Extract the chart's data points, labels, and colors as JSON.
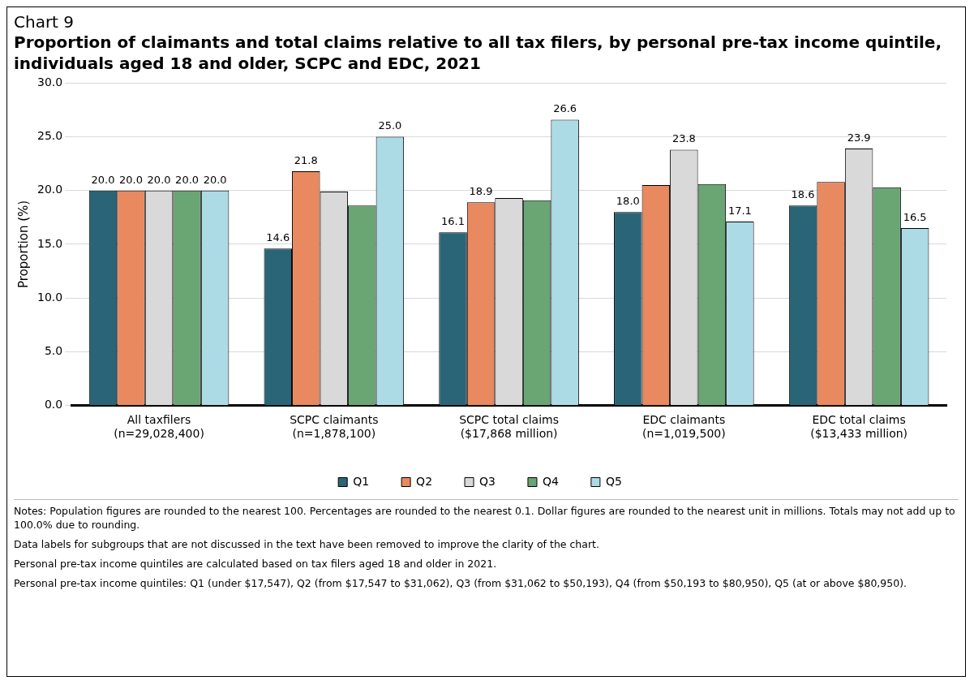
{
  "chart_data": {
    "type": "bar",
    "title": "Chart 9",
    "subtitle": "Proportion of claimants and total claims relative to all tax filers, by personal pre-tax income quintile, individuals aged 18 and older, SCPC and EDC, 2021",
    "ylabel": "Proportion (%)",
    "categories": [
      "All taxfilers\n(n=29,028,400)",
      "SCPC claimants\n(n=1,878,100)",
      "SCPC total claims\n($17,868 million)",
      "EDC claimants\n(n=1,019,500)",
      "EDC total claims\n($13,433 million)"
    ],
    "series": [
      {
        "name": "Q1",
        "color": "#2a6477",
        "values": [
          20.0,
          14.6,
          16.1,
          18.0,
          18.6
        ],
        "value_labels": [
          "20.0",
          "14.6",
          "16.1",
          "18.0",
          "18.6"
        ]
      },
      {
        "name": "Q2",
        "color": "#e8895f",
        "values": [
          20.0,
          21.8,
          18.9,
          20.5,
          20.8
        ],
        "value_labels": [
          "20.0",
          "21.8",
          "18.9",
          null,
          null
        ]
      },
      {
        "name": "Q3",
        "color": "#d9d9d9",
        "values": [
          20.0,
          19.9,
          19.3,
          23.8,
          23.9
        ],
        "value_labels": [
          "20.0",
          null,
          null,
          "23.8",
          "23.9"
        ]
      },
      {
        "name": "Q4",
        "color": "#6aa574",
        "values": [
          20.0,
          18.6,
          19.1,
          20.6,
          20.3
        ],
        "value_labels": [
          "20.0",
          null,
          null,
          null,
          null
        ]
      },
      {
        "name": "Q5",
        "color": "#acdbe6",
        "values": [
          20.0,
          25.0,
          26.6,
          17.1,
          16.5
        ],
        "value_labels": [
          "20.0",
          "25.0",
          "26.6",
          "17.1",
          "16.5"
        ]
      }
    ],
    "ylim": [
      0,
      30
    ],
    "yticks": [
      {
        "value": 0,
        "label": "0.0"
      },
      {
        "value": 5,
        "label": "5.0"
      },
      {
        "value": 10,
        "label": "10.0"
      },
      {
        "value": 15,
        "label": "15.0"
      },
      {
        "value": 20,
        "label": "20.0"
      },
      {
        "value": 25,
        "label": "25.0"
      },
      {
        "value": 30,
        "label": "30.0"
      }
    ],
    "grid": "y",
    "legend": "bottom",
    "annotations": [
      "Notes: Population figures are rounded to the nearest 100. Percentages are rounded to the nearest 0.1. Dollar figures are rounded to the nearest unit in millions. Totals may not add up to 100.0% due to rounding.",
      "Data labels for subgroups that are not discussed in the text have been removed to improve the clarity of the chart.",
      "Personal pre-tax income quintiles are calculated based on tax filers aged 18 and older in 2021.",
      "Personal pre-tax income quintiles: Q1 (under $17,547), Q2 (from $17,547 to $31,062), Q3 (from $31,062 to $50,193), Q4 (from $50,193 to $80,950), Q5 (at or above $80,950)."
    ]
  }
}
